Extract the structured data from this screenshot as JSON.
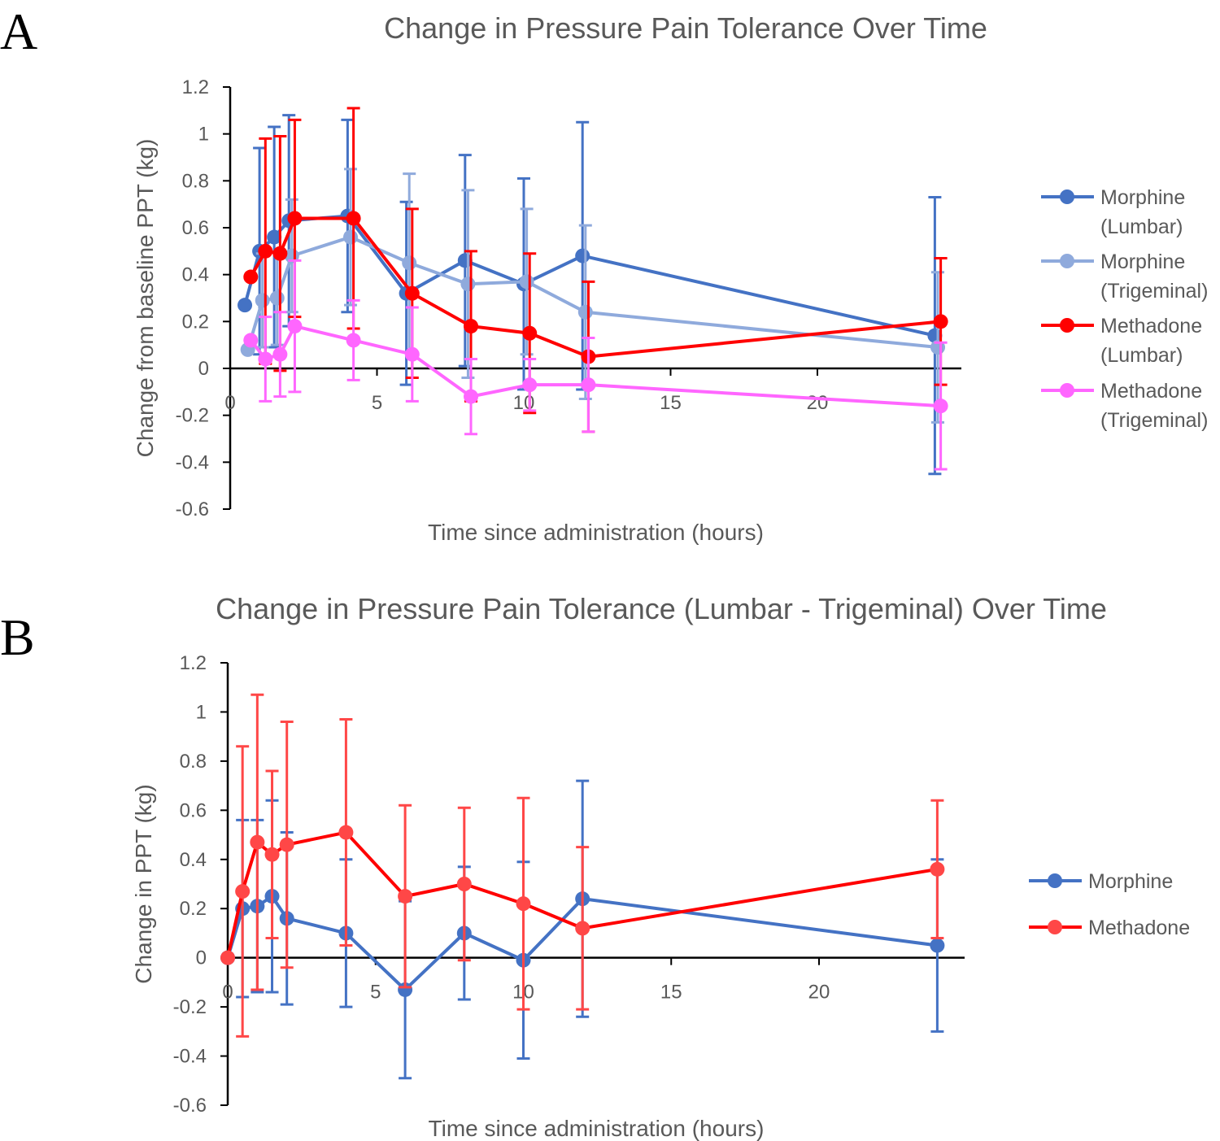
{
  "panels": [
    "A",
    "B"
  ],
  "chart_data": [
    {
      "type": "line",
      "title": "Change in Pressure Pain Tolerance Over Time",
      "xlabel": "Time since administration (hours)",
      "ylabel": "Change from baseline PPT (kg)",
      "xlim": [
        0,
        25
      ],
      "ylim": [
        -0.6,
        1.2
      ],
      "xticks": [
        "0",
        "5",
        "10",
        "15",
        "20"
      ],
      "xtick_values": [
        0,
        5,
        10,
        15,
        20
      ],
      "yticks": [
        "1.2",
        "1",
        "0.8",
        "0.6",
        "0.4",
        "0.2",
        "0",
        "-0.2",
        "-0.4",
        "-0.6"
      ],
      "ytick_values": [
        1.2,
        1,
        0.8,
        0.6,
        0.4,
        0.2,
        0,
        -0.2,
        -0.4,
        -0.6
      ],
      "legend_position": "right",
      "x": [
        0.5,
        1,
        1.5,
        2,
        4,
        6,
        8,
        10,
        12,
        24
      ],
      "series": [
        {
          "name": "Morphine",
          "name2": "(Lumbar)",
          "color": "#4472C4",
          "xoffset": 0,
          "values": [
            0.27,
            0.5,
            0.56,
            0.63,
            0.65,
            0.32,
            0.46,
            0.36,
            0.48,
            0.14
          ],
          "errors": [
            0,
            0.44,
            0.47,
            0.45,
            0.41,
            0.39,
            0.45,
            0.45,
            0.57,
            0.59
          ]
        },
        {
          "name": "Morphine",
          "name2": "(Trigeminal)",
          "color": "#8FAADC",
          "xoffset": 0.1,
          "values": [
            0.08,
            0.29,
            0.3,
            0.48,
            0.56,
            0.45,
            0.36,
            0.37,
            0.24,
            0.09
          ],
          "errors": [
            0,
            0.2,
            0.2,
            0.24,
            0.29,
            0.38,
            0.4,
            0.31,
            0.37,
            0.32
          ]
        },
        {
          "name": "Methadone",
          "name2": "(Lumbar)",
          "color": "#FF0000",
          "xoffset": 0.2,
          "values": [
            0.39,
            0.5,
            0.49,
            0.64,
            0.64,
            0.32,
            0.18,
            0.15,
            0.05,
            0.2
          ],
          "errors": [
            0,
            0.48,
            0.5,
            0.42,
            0.47,
            0.36,
            0.32,
            0.34,
            0.32,
            0.27
          ]
        },
        {
          "name": "Methadone",
          "name2": "(Trigeminal)",
          "color": "#FF66FF",
          "xoffset": 0.2,
          "values": [
            0.12,
            0.04,
            0.06,
            0.18,
            0.12,
            0.06,
            -0.12,
            -0.07,
            -0.07,
            -0.16
          ],
          "errors": [
            0,
            0.18,
            0.18,
            0.28,
            0.17,
            0.2,
            0.16,
            0.11,
            0.2,
            0.27
          ]
        }
      ]
    },
    {
      "type": "line",
      "title": "Change in Pressure Pain Tolerance (Lumbar - Trigeminal) Over Time",
      "xlabel": "Time since administration (hours)",
      "ylabel": "Change in PPT (kg)",
      "xlim": [
        0,
        25
      ],
      "ylim": [
        -0.6,
        1.2
      ],
      "xticks": [
        "0",
        "5",
        "10",
        "15",
        "20"
      ],
      "xtick_values": [
        0,
        5,
        10,
        15,
        20
      ],
      "yticks": [
        "1.2",
        "1",
        "0.8",
        "0.6",
        "0.4",
        "0.2",
        "0",
        "-0.2",
        "-0.4",
        "-0.6"
      ],
      "ytick_values": [
        1.2,
        1,
        0.8,
        0.6,
        0.4,
        0.2,
        0,
        -0.2,
        -0.4,
        -0.6
      ],
      "legend_position": "right",
      "x": [
        0,
        0.5,
        1,
        1.5,
        2,
        4,
        6,
        8,
        10,
        12,
        24
      ],
      "series": [
        {
          "name": "Morphine",
          "name2": "",
          "color": "#4472C4",
          "marker": "#4472C4",
          "xoffset": 0,
          "values": [
            0,
            0.2,
            0.21,
            0.25,
            0.16,
            0.1,
            -0.13,
            0.1,
            -0.01,
            0.24,
            0.05
          ],
          "errors": [
            0,
            0.36,
            0.35,
            0.39,
            0.35,
            0.3,
            0.36,
            0.27,
            0.4,
            0.48,
            0.35
          ]
        },
        {
          "name": "Methadone",
          "name2": "",
          "color": "#FF0000",
          "marker": "#FF4747",
          "xoffset": 0,
          "values": [
            0,
            0.27,
            0.47,
            0.42,
            0.46,
            0.51,
            0.25,
            0.3,
            0.22,
            0.12,
            0.36
          ],
          "errors": [
            0,
            0.59,
            0.6,
            0.34,
            0.5,
            0.46,
            0.37,
            0.31,
            0.43,
            0.33,
            0.28
          ]
        }
      ]
    }
  ]
}
